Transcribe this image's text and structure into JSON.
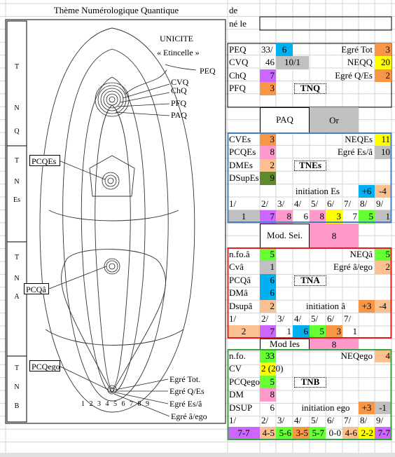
{
  "header": {
    "title": "Thème Numérologique Quantique",
    "de": "de",
    "ne_le": "né le"
  },
  "diagram": {
    "unicite": "UNICITE",
    "etincelle": "« Etincelle »",
    "peq": "PEQ",
    "cvq": "CVQ",
    "chq": "ChQ",
    "pfq": "PFQ",
    "paq": "PAQ",
    "pcqes": "PCQEs",
    "pcqa": "PCQâ",
    "pcqego": "PCQego",
    "egre_tot": "Egré Tot.",
    "egre_qes": "Egré Q/Es",
    "egre_esa": "Egré Es/â",
    "egre_aego": "Egré â/ego",
    "scale": [
      "1",
      "2",
      "3",
      "4",
      "5",
      "6",
      "7",
      "8",
      "9"
    ],
    "side": [
      [
        "T",
        "N",
        "Q"
      ],
      [
        "T",
        "N",
        "Es"
      ],
      [
        "T",
        "N",
        "A"
      ],
      [
        "T",
        "N",
        "B"
      ]
    ]
  },
  "tnq": {
    "rows": [
      [
        "PEQ",
        "33/",
        "6"
      ],
      [
        "CVQ",
        "46",
        "10/1"
      ],
      [
        "ChQ",
        "7"
      ],
      [
        "PFQ",
        "3"
      ]
    ],
    "right": [
      [
        "Egré Tot",
        "3"
      ],
      [
        "NEQQ",
        "20"
      ],
      [
        "Egré Q/Es",
        "2"
      ]
    ],
    "title": "TNQ",
    "paq": "PAQ",
    "or": "Or"
  },
  "tnes": {
    "rows": [
      [
        "CVEs",
        "3"
      ],
      [
        "PCQEs",
        "8"
      ],
      [
        "DMEs",
        "2"
      ],
      [
        "DSupEs",
        "9"
      ]
    ],
    "right": [
      [
        "NEQEs",
        "11"
      ],
      [
        "Egré Es/â",
        "10"
      ]
    ],
    "title": "TNEs",
    "initiation": "initiation Es",
    "init_values": [
      "+6",
      "-4"
    ],
    "positions": [
      "1/",
      "2/",
      "3/",
      "4/",
      "5/",
      "6/",
      "7/",
      "8/",
      "9/"
    ],
    "values": [
      "1",
      "7",
      "8",
      "6",
      "8",
      "3",
      "7",
      "5",
      "1"
    ],
    "mod_label": "Mod. Sei.",
    "mod_value": "8"
  },
  "tna": {
    "rows": [
      [
        "n.fo.â",
        "5"
      ],
      [
        "Cvâ",
        "1"
      ],
      [
        "PCQâ",
        "6"
      ],
      [
        "DMâ",
        "6"
      ],
      [
        "Dsupâ",
        "2"
      ]
    ],
    "right": [
      [
        "NEQâ",
        "5"
      ],
      [
        "Egré â/ego",
        "2"
      ]
    ],
    "title": "TNA",
    "initiation": "initiation â",
    "init_values": [
      "+3",
      "-4"
    ],
    "positions": [
      "1/",
      "2/",
      "3/",
      "4/",
      "5/",
      "6/",
      "7/"
    ],
    "values": [
      "2",
      "7",
      "1",
      "6",
      "5",
      "3",
      "1"
    ],
    "mod_label": "Mod Ies",
    "mod_value": "8"
  },
  "tnb": {
    "rows": [
      [
        "n.fo.",
        "33"
      ],
      [
        "CV",
        "2 (20)"
      ],
      [
        "PCQego",
        "5"
      ],
      [
        "DM",
        "8"
      ],
      [
        "DSUP",
        "6"
      ]
    ],
    "right": [
      [
        "NEQego",
        "4"
      ]
    ],
    "title": "TNB",
    "initiation": "initiation ego",
    "init_values": [
      "+3",
      "-1"
    ],
    "positions": [
      "1/",
      "2/",
      "3/",
      "4/",
      "5/",
      "6/",
      "7/",
      "8/",
      "9/"
    ],
    "values": [
      "7-7",
      "4-5",
      "5-6",
      "3-5",
      "5-7",
      "0-0",
      "4-6",
      "2-2",
      "7-7"
    ]
  }
}
